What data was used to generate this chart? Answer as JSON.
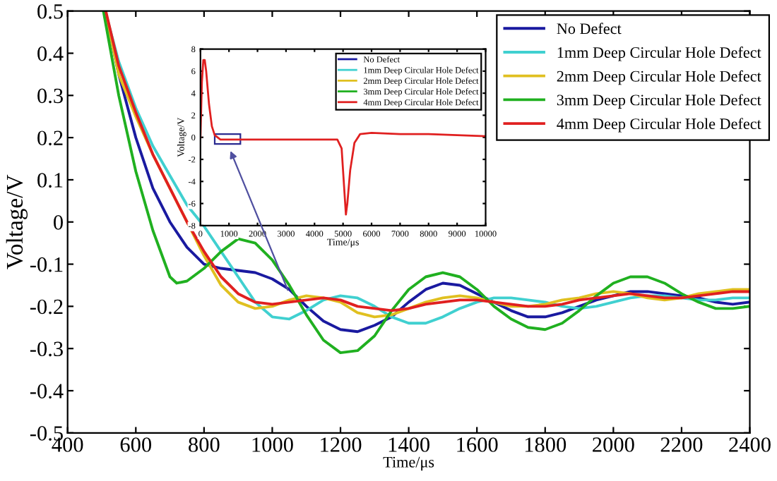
{
  "chart_data": [
    {
      "type": "line",
      "xlabel": "Time/μs",
      "ylabel": "Voltage/V",
      "xlim": [
        400,
        2400
      ],
      "ylim": [
        -0.5,
        0.5
      ],
      "xticks": [
        400,
        600,
        800,
        1000,
        1200,
        1400,
        1600,
        1800,
        2000,
        2200,
        2400
      ],
      "yticks": [
        -0.5,
        -0.4,
        -0.3,
        -0.2,
        -0.1,
        0,
        0.1,
        0.2,
        0.3,
        0.4,
        0.5
      ],
      "grid": false,
      "legend": "top right",
      "line_style": "solid",
      "marker": "none",
      "series": [
        {
          "name": "No Defect",
          "color": "#1a1aa0",
          "x": [
            510,
            550,
            600,
            650,
            700,
            750,
            800,
            850,
            900,
            950,
            1000,
            1050,
            1100,
            1150,
            1200,
            1250,
            1300,
            1350,
            1400,
            1450,
            1500,
            1550,
            1600,
            1650,
            1700,
            1750,
            1800,
            1850,
            1900,
            1950,
            2000,
            2050,
            2100,
            2150,
            2200,
            2250,
            2300,
            2350,
            2400
          ],
          "values": [
            0.5,
            0.35,
            0.2,
            0.08,
            0.0,
            -0.06,
            -0.1,
            -0.11,
            -0.115,
            -0.12,
            -0.135,
            -0.16,
            -0.2,
            -0.235,
            -0.255,
            -0.26,
            -0.245,
            -0.225,
            -0.19,
            -0.16,
            -0.145,
            -0.15,
            -0.17,
            -0.19,
            -0.21,
            -0.225,
            -0.225,
            -0.215,
            -0.2,
            -0.185,
            -0.175,
            -0.165,
            -0.165,
            -0.17,
            -0.175,
            -0.18,
            -0.19,
            -0.195,
            -0.19
          ]
        },
        {
          "name": "1mm Deep Circular Hole Defect",
          "color": "#40d0d0",
          "x": [
            510,
            550,
            600,
            650,
            700,
            750,
            800,
            850,
            900,
            950,
            1000,
            1050,
            1100,
            1150,
            1200,
            1250,
            1300,
            1350,
            1400,
            1450,
            1500,
            1550,
            1600,
            1650,
            1700,
            1750,
            1800,
            1850,
            1900,
            1950,
            2000,
            2050,
            2100,
            2150,
            2200,
            2250,
            2300,
            2350,
            2400
          ],
          "values": [
            0.5,
            0.38,
            0.27,
            0.18,
            0.11,
            0.04,
            -0.01,
            -0.07,
            -0.13,
            -0.19,
            -0.225,
            -0.23,
            -0.21,
            -0.185,
            -0.175,
            -0.18,
            -0.2,
            -0.225,
            -0.24,
            -0.24,
            -0.225,
            -0.205,
            -0.19,
            -0.18,
            -0.18,
            -0.185,
            -0.19,
            -0.2,
            -0.205,
            -0.2,
            -0.19,
            -0.18,
            -0.175,
            -0.175,
            -0.18,
            -0.185,
            -0.185,
            -0.18,
            -0.18
          ]
        },
        {
          "name": "2mm Deep Circular Hole Defect",
          "color": "#e0c020",
          "x": [
            510,
            550,
            600,
            650,
            700,
            750,
            800,
            850,
            900,
            950,
            1000,
            1050,
            1100,
            1150,
            1200,
            1250,
            1300,
            1350,
            1400,
            1450,
            1500,
            1550,
            1600,
            1650,
            1700,
            1750,
            1800,
            1850,
            1900,
            1950,
            2000,
            2050,
            2100,
            2150,
            2200,
            2250,
            2300,
            2350,
            2400
          ],
          "values": [
            0.5,
            0.35,
            0.25,
            0.16,
            0.08,
            0.0,
            -0.08,
            -0.15,
            -0.19,
            -0.205,
            -0.2,
            -0.185,
            -0.175,
            -0.18,
            -0.19,
            -0.215,
            -0.225,
            -0.22,
            -0.205,
            -0.19,
            -0.18,
            -0.175,
            -0.18,
            -0.19,
            -0.2,
            -0.2,
            -0.195,
            -0.185,
            -0.18,
            -0.17,
            -0.165,
            -0.17,
            -0.18,
            -0.185,
            -0.18,
            -0.17,
            -0.165,
            -0.16,
            -0.16
          ]
        },
        {
          "name": "3mm Deep Circular Hole Defect",
          "color": "#20b020",
          "x": [
            505,
            550,
            600,
            650,
            700,
            720,
            750,
            800,
            850,
            900,
            950,
            1000,
            1050,
            1100,
            1150,
            1200,
            1250,
            1300,
            1350,
            1400,
            1450,
            1500,
            1550,
            1600,
            1650,
            1700,
            1750,
            1800,
            1850,
            1900,
            1950,
            2000,
            2050,
            2100,
            2150,
            2200,
            2250,
            2300,
            2350,
            2400
          ],
          "values": [
            0.5,
            0.3,
            0.12,
            -0.02,
            -0.13,
            -0.145,
            -0.14,
            -0.11,
            -0.07,
            -0.04,
            -0.05,
            -0.09,
            -0.15,
            -0.22,
            -0.28,
            -0.31,
            -0.305,
            -0.27,
            -0.21,
            -0.16,
            -0.13,
            -0.12,
            -0.13,
            -0.16,
            -0.2,
            -0.23,
            -0.25,
            -0.255,
            -0.24,
            -0.21,
            -0.175,
            -0.145,
            -0.13,
            -0.13,
            -0.145,
            -0.17,
            -0.19,
            -0.205,
            -0.205,
            -0.2
          ]
        },
        {
          "name": "4mm Deep Circular Hole Defect",
          "color": "#e02020",
          "x": [
            512,
            550,
            600,
            650,
            700,
            750,
            800,
            850,
            900,
            950,
            1000,
            1050,
            1100,
            1150,
            1200,
            1250,
            1300,
            1350,
            1400,
            1450,
            1500,
            1550,
            1600,
            1650,
            1700,
            1750,
            1800,
            1850,
            1900,
            1950,
            2000,
            2050,
            2100,
            2150,
            2200,
            2250,
            2300,
            2350,
            2400
          ],
          "values": [
            0.5,
            0.37,
            0.26,
            0.16,
            0.08,
            0.0,
            -0.07,
            -0.13,
            -0.17,
            -0.19,
            -0.195,
            -0.19,
            -0.185,
            -0.18,
            -0.185,
            -0.2,
            -0.205,
            -0.21,
            -0.205,
            -0.195,
            -0.19,
            -0.185,
            -0.185,
            -0.19,
            -0.195,
            -0.2,
            -0.2,
            -0.195,
            -0.185,
            -0.18,
            -0.175,
            -0.17,
            -0.175,
            -0.18,
            -0.18,
            -0.175,
            -0.17,
            -0.165,
            -0.165
          ]
        }
      ]
    },
    {
      "type": "line",
      "xlabel": "Time/μs",
      "ylabel": "Voltage/V",
      "xlim": [
        0,
        10000
      ],
      "ylim": [
        -8,
        8
      ],
      "xticks": [
        0,
        1000,
        2000,
        3000,
        4000,
        5000,
        6000,
        7000,
        8000,
        9000,
        10000
      ],
      "yticks": [
        -8,
        -6,
        -4,
        -2,
        0,
        2,
        4,
        6,
        8
      ],
      "grid": false,
      "legend": "top right",
      "line_style": "solid",
      "marker": "none",
      "x": [
        0,
        50,
        100,
        150,
        200,
        300,
        400,
        500,
        700,
        1000,
        2000,
        3000,
        4000,
        4800,
        4950,
        5050,
        5100,
        5150,
        5250,
        5400,
        5600,
        6000,
        7000,
        8000,
        9000,
        10000
      ],
      "series": [
        {
          "name": "No Defect",
          "color": "#1a1aa0",
          "values": [
            null,
            null,
            null,
            null,
            null,
            null,
            null,
            null,
            null,
            null,
            null,
            null,
            null,
            null,
            null,
            null,
            null,
            null,
            null,
            null,
            null,
            null,
            null,
            null,
            null,
            null
          ]
        },
        {
          "name": "1mm Deep Circular Hole Defect",
          "color": "#40d0d0",
          "values": [
            null,
            null,
            null,
            null,
            null,
            null,
            null,
            null,
            null,
            null,
            null,
            null,
            null,
            null,
            null,
            null,
            null,
            null,
            null,
            null,
            null,
            null,
            null,
            null,
            null,
            null
          ]
        },
        {
          "name": "2mm Deep Circular Hole Defect",
          "color": "#e0c020",
          "values": [
            null,
            null,
            null,
            null,
            null,
            null,
            null,
            null,
            null,
            null,
            null,
            null,
            null,
            null,
            null,
            null,
            null,
            null,
            null,
            null,
            null,
            null,
            null,
            null,
            null,
            null
          ]
        },
        {
          "name": "3mm Deep Circular Hole Defect",
          "color": "#20b020",
          "values": [
            null,
            null,
            null,
            null,
            null,
            null,
            null,
            null,
            null,
            null,
            null,
            null,
            null,
            null,
            null,
            null,
            null,
            null,
            null,
            null,
            null,
            null,
            null,
            null,
            null,
            null
          ]
        },
        {
          "name": "4mm Deep Circular Hole Defect",
          "color": "#e02020",
          "values": [
            0,
            5,
            7,
            7,
            6,
            3,
            1,
            0.2,
            -0.2,
            -0.2,
            -0.2,
            -0.2,
            -0.2,
            -0.2,
            -1,
            -5,
            -7,
            -6,
            -3,
            -0.5,
            0.3,
            0.4,
            0.3,
            0.3,
            0.2,
            0.1
          ]
        }
      ]
    }
  ]
}
